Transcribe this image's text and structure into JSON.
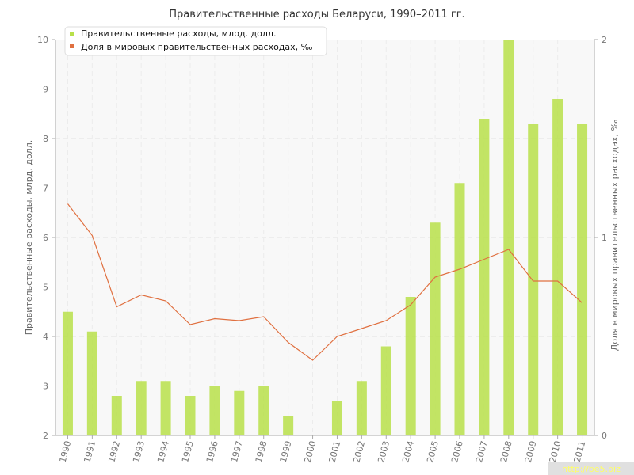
{
  "chart_data": {
    "type": "bar+line",
    "title": "Правительственные расходы Беларуси, 1990–2011 гг.",
    "x": [
      "1990",
      "1991",
      "1992",
      "1993",
      "1994",
      "1995",
      "1996",
      "1997",
      "1998",
      "1999",
      "2000",
      "2001",
      "2002",
      "2003",
      "2004",
      "2005",
      "2006",
      "2007",
      "2008",
      "2009",
      "2010",
      "2011"
    ],
    "series": [
      {
        "name": "Правительственные расходы, млрд. долл.",
        "type": "bar",
        "axis": "left",
        "color": "#b8e04a",
        "values": [
          4.5,
          4.1,
          2.8,
          3.1,
          3.1,
          2.8,
          3.0,
          2.9,
          3.0,
          2.4,
          2.0,
          2.7,
          3.1,
          3.8,
          4.8,
          6.3,
          7.1,
          8.4,
          10.0,
          8.3,
          8.8,
          8.3
        ]
      },
      {
        "name": "Доля в мировых правительственных расходах, ‰",
        "type": "line",
        "axis": "right",
        "color": "#e07040",
        "values": [
          1.17,
          1.01,
          0.65,
          0.71,
          0.68,
          0.56,
          0.59,
          0.58,
          0.6,
          0.47,
          0.38,
          0.5,
          0.54,
          0.58,
          0.66,
          0.8,
          0.84,
          0.89,
          0.94,
          0.78,
          0.78,
          0.67
        ]
      }
    ],
    "ylabel": "Правительственные расходы, млрд. долл.",
    "y2label": "Доля в мировых правительственных расходах, ‰",
    "ylim": [
      2,
      10
    ],
    "yticks": [
      "2",
      "3",
      "4",
      "5",
      "6",
      "7",
      "8",
      "9",
      "10"
    ],
    "y2lim": [
      0,
      2
    ],
    "y2ticks": [
      "0",
      "1",
      "2"
    ],
    "grid": true,
    "legend": "top-left"
  },
  "watermark": "http://be5.biz"
}
